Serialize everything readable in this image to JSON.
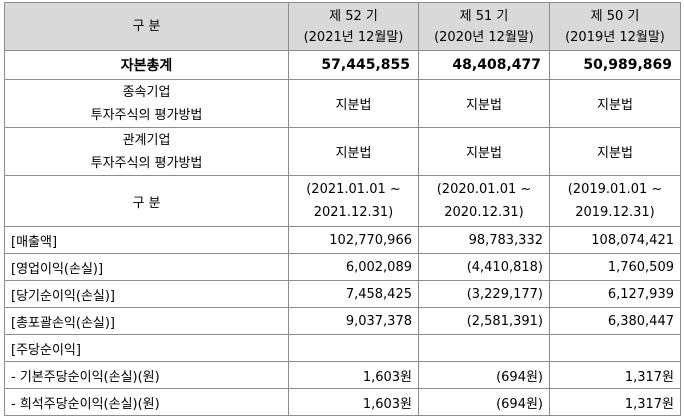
{
  "header": {
    "label": "구 분",
    "periods": [
      {
        "name": "제 52 기",
        "date": "(2021년 12월말)"
      },
      {
        "name": "제 51 기",
        "date": "(2020년 12월말)"
      },
      {
        "name": "제 50 기",
        "date": "(2019년 12월말)"
      }
    ]
  },
  "total_equity": {
    "label": "자본총계",
    "values": [
      "57,445,855",
      "48,408,477",
      "50,989,869"
    ]
  },
  "subsidiary": {
    "label_line1": "종속기업",
    "label_line2": "투자주식의 평가방법",
    "values": [
      "지분법",
      "지분법",
      "지분법"
    ]
  },
  "affiliate": {
    "label_line1": "관계기업",
    "label_line2": "투자주식의 평가방법",
    "values": [
      "지분법",
      "지분법",
      "지분법"
    ]
  },
  "period_header": {
    "label": "구 분",
    "ranges": [
      {
        "line1": "(2021.01.01 ~",
        "line2": "2021.12.31)"
      },
      {
        "line1": "(2020.01.01 ~",
        "line2": "2020.12.31)"
      },
      {
        "line1": "(2019.01.01 ~",
        "line2": "2019.12.31)"
      }
    ]
  },
  "income_rows": [
    {
      "label": "[매출액]",
      "values": [
        "102,770,966",
        "98,783,332",
        "108,074,421"
      ]
    },
    {
      "label": "[영업이익(손실)]",
      "values": [
        "6,002,089",
        "(4,410,818)",
        "1,760,509"
      ]
    },
    {
      "label": "[당기순이익(손실)]",
      "values": [
        "7,458,425",
        "(3,229,177)",
        "6,127,939"
      ]
    },
    {
      "label": "[총포괄손익(손실)]",
      "values": [
        "9,037,378",
        "(2,581,391)",
        "6,380,447"
      ]
    },
    {
      "label": "[주당순이익]",
      "values": [
        "",
        "",
        ""
      ]
    },
    {
      "label": "- 기본주당순이익(손실)(원)",
      "values": [
        "1,603원",
        "(694원)",
        "1,317원"
      ]
    },
    {
      "label": "- 희석주당순이익(손실)(원)",
      "values": [
        "1,603원",
        "(694원)",
        "1,317원"
      ]
    }
  ]
}
